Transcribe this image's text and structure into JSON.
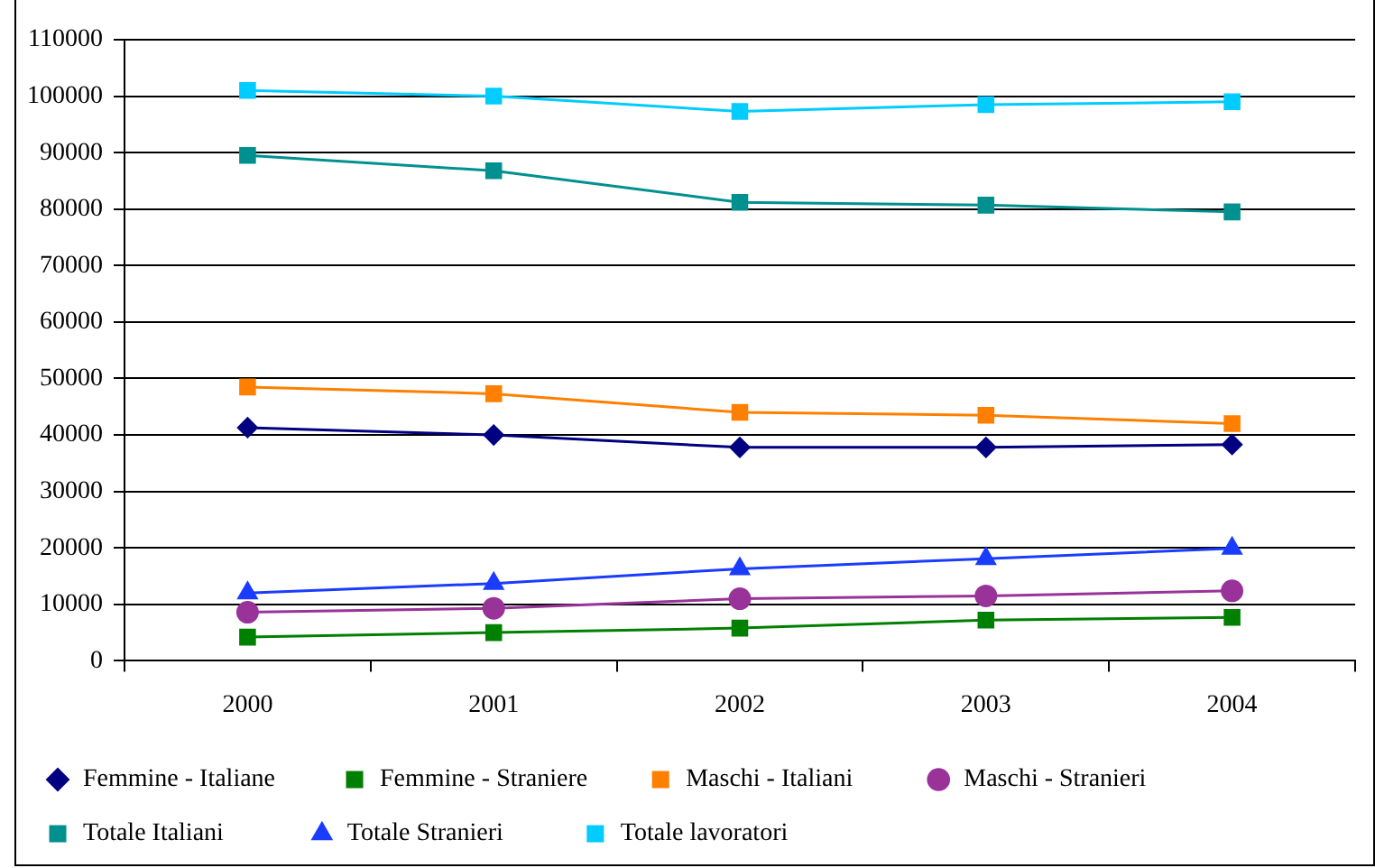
{
  "chart_data": {
    "type": "line",
    "categories": [
      "2000",
      "2001",
      "2002",
      "2003",
      "2004"
    ],
    "series": [
      {
        "name": "Femmine - Italiane",
        "color": "#000080",
        "marker": "diamond",
        "values": [
          41300,
          40000,
          37800,
          37800,
          38300
        ]
      },
      {
        "name": "Femmine - Straniere",
        "color": "#008000",
        "marker": "square",
        "values": [
          4200,
          5000,
          5800,
          7200,
          7700
        ]
      },
      {
        "name": "Maschi - Italiani",
        "color": "#ff8000",
        "marker": "square",
        "values": [
          48500,
          47300,
          44000,
          43500,
          42000
        ]
      },
      {
        "name": "Maschi - Stranieri",
        "color": "#993399",
        "marker": "circle",
        "values": [
          8600,
          9300,
          11000,
          11500,
          12400
        ]
      },
      {
        "name": "Totale Italiani",
        "color": "#009090",
        "marker": "square",
        "values": [
          89500,
          86800,
          81200,
          80700,
          79500
        ]
      },
      {
        "name": "Totale Stranieri",
        "color": "#1a3cff",
        "marker": "triangle",
        "values": [
          12000,
          13700,
          16300,
          18100,
          19900
        ]
      },
      {
        "name": "Totale lavoratori",
        "color": "#00ccff",
        "marker": "square",
        "values": [
          101000,
          100000,
          97300,
          98500,
          99000
        ]
      }
    ],
    "ylim": [
      0,
      110000
    ],
    "yticks": [
      0,
      10000,
      20000,
      30000,
      40000,
      50000,
      60000,
      70000,
      80000,
      90000,
      100000,
      110000
    ],
    "grid": "y",
    "legend": "bottom",
    "line_style": "solid"
  }
}
